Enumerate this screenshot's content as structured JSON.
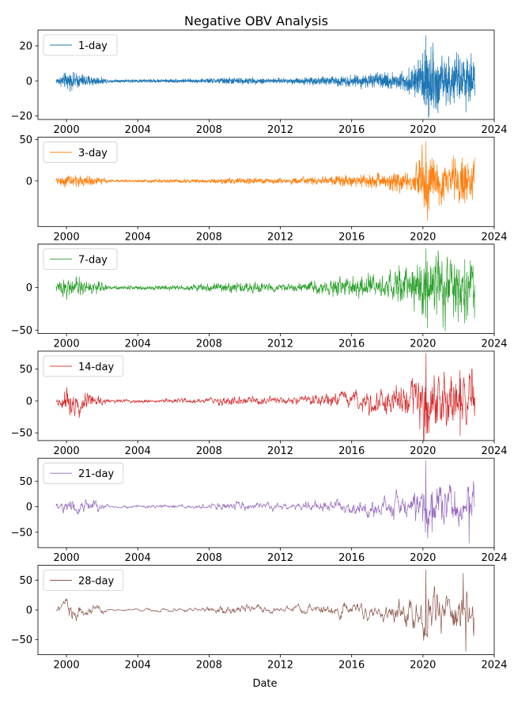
{
  "chart_data": {
    "type": "line",
    "title": "Negative OBV Analysis",
    "xlabel": "Date",
    "x_range": [
      "1999-06",
      "2022-12"
    ],
    "xlim_years": [
      1998.4,
      2024.0
    ],
    "x_ticks": [
      "2000",
      "2004",
      "2008",
      "2012",
      "2016",
      "2020",
      "2024"
    ],
    "grid": false,
    "legend_placement": "upper-left",
    "subplots": [
      {
        "name": "1-day",
        "color": "#1f77b4",
        "ylim": [
          -22,
          29
        ],
        "y_ticks": [
          -20,
          0,
          20
        ],
        "sample_step_days": 3,
        "envelope": [
          {
            "x": "1999-06",
            "amp": 1.0
          },
          {
            "x": "2000-01",
            "amp": 3.2
          },
          {
            "x": "2001-06",
            "amp": 2.0
          },
          {
            "x": "2002-06",
            "amp": 0.6
          },
          {
            "x": "2007-06",
            "amp": 0.8
          },
          {
            "x": "2009-01",
            "amp": 1.3
          },
          {
            "x": "2012-01",
            "amp": 1.0
          },
          {
            "x": "2015-01",
            "amp": 1.8
          },
          {
            "x": "2018-01",
            "amp": 3.0
          },
          {
            "x": "2019-06",
            "amp": 4.5
          },
          {
            "x": "2020-03",
            "amp": 13.0
          },
          {
            "x": "2021-06",
            "amp": 8.5
          },
          {
            "x": "2022-12",
            "amp": 8.5
          }
        ],
        "spikes": [
          {
            "x": "2020-03",
            "y": 26
          },
          {
            "x": "2020-05",
            "y": -20
          },
          {
            "x": "2022-06",
            "y": -18
          }
        ]
      },
      {
        "name": "3-day",
        "color": "#ff7f0e",
        "ylim": [
          -55,
          53
        ],
        "y_ticks": [
          0,
          50
        ],
        "sample_step_days": 4,
        "envelope": [
          {
            "x": "1999-06",
            "amp": 2.0
          },
          {
            "x": "2000-01",
            "amp": 5.5
          },
          {
            "x": "2001-06",
            "amp": 4.0
          },
          {
            "x": "2002-06",
            "amp": 1.0
          },
          {
            "x": "2007-06",
            "amp": 1.5
          },
          {
            "x": "2009-01",
            "amp": 2.5
          },
          {
            "x": "2012-01",
            "amp": 2.0
          },
          {
            "x": "2015-01",
            "amp": 4.0
          },
          {
            "x": "2018-01",
            "amp": 7.0
          },
          {
            "x": "2019-06",
            "amp": 10.0
          },
          {
            "x": "2020-03",
            "amp": 25.0
          },
          {
            "x": "2021-06",
            "amp": 17.0
          },
          {
            "x": "2022-12",
            "amp": 17.0
          }
        ],
        "spikes": [
          {
            "x": "2020-03",
            "y": 48
          },
          {
            "x": "2020-04",
            "y": -48
          },
          {
            "x": "2022-03",
            "y": 22
          }
        ]
      },
      {
        "name": "7-day",
        "color": "#2ca02c",
        "ylim": [
          -54,
          51
        ],
        "y_ticks": [
          -50,
          0
        ],
        "sample_step_days": 5,
        "envelope": [
          {
            "x": "1999-06",
            "amp": 3.0
          },
          {
            "x": "2000-01",
            "amp": 8.0
          },
          {
            "x": "2001-06",
            "amp": 6.0
          },
          {
            "x": "2002-06",
            "amp": 1.5
          },
          {
            "x": "2007-06",
            "amp": 2.5
          },
          {
            "x": "2009-01",
            "amp": 4.5
          },
          {
            "x": "2012-01",
            "amp": 3.0
          },
          {
            "x": "2015-01",
            "amp": 6.0
          },
          {
            "x": "2018-01",
            "amp": 11.0
          },
          {
            "x": "2019-06",
            "amp": 15.0
          },
          {
            "x": "2020-03",
            "amp": 30.0
          },
          {
            "x": "2021-06",
            "amp": 25.0
          },
          {
            "x": "2022-12",
            "amp": 25.0
          }
        ],
        "spikes": [
          {
            "x": "2020-03",
            "y": 46
          },
          {
            "x": "2020-04",
            "y": -48
          },
          {
            "x": "2022-05",
            "y": -42
          }
        ]
      },
      {
        "name": "14-day",
        "color": "#d62728",
        "ylim": [
          -62,
          78
        ],
        "y_ticks": [
          -50,
          0,
          50
        ],
        "sample_step_days": 7,
        "envelope": [
          {
            "x": "1999-06",
            "amp": 4.0
          },
          {
            "x": "2000-01",
            "amp": 15.0
          },
          {
            "x": "2001-06",
            "amp": 10.0
          },
          {
            "x": "2002-06",
            "amp": 2.0
          },
          {
            "x": "2007-06",
            "amp": 3.0
          },
          {
            "x": "2009-01",
            "amp": 6.0
          },
          {
            "x": "2012-01",
            "amp": 4.0
          },
          {
            "x": "2015-01",
            "amp": 9.0
          },
          {
            "x": "2018-01",
            "amp": 15.0
          },
          {
            "x": "2019-06",
            "amp": 22.0
          },
          {
            "x": "2020-03",
            "amp": 45.0
          },
          {
            "x": "2021-06",
            "amp": 35.0
          },
          {
            "x": "2022-12",
            "amp": 35.0
          }
        ],
        "spikes": [
          {
            "x": "2020-03",
            "y": 75
          },
          {
            "x": "2020-05",
            "y": -50
          },
          {
            "x": "2022-02",
            "y": -55
          },
          {
            "x": "2022-10",
            "y": 50
          }
        ]
      },
      {
        "name": "21-day",
        "color": "#9467bd",
        "ylim": [
          -80,
          95
        ],
        "y_ticks": [
          -50,
          0,
          50
        ],
        "sample_step_days": 8,
        "envelope": [
          {
            "x": "1999-06",
            "amp": 5.0
          },
          {
            "x": "2000-01",
            "amp": 16.0
          },
          {
            "x": "2001-06",
            "amp": 12.0
          },
          {
            "x": "2002-06",
            "amp": 2.0
          },
          {
            "x": "2007-06",
            "amp": 3.5
          },
          {
            "x": "2009-01",
            "amp": 7.0
          },
          {
            "x": "2012-01",
            "amp": 5.0
          },
          {
            "x": "2015-01",
            "amp": 11.0
          },
          {
            "x": "2018-01",
            "amp": 18.0
          },
          {
            "x": "2019-06",
            "amp": 25.0
          },
          {
            "x": "2020-03",
            "amp": 50.0
          },
          {
            "x": "2021-06",
            "amp": 40.0
          },
          {
            "x": "2022-12",
            "amp": 40.0
          }
        ],
        "spikes": [
          {
            "x": "2020-03",
            "y": 90
          },
          {
            "x": "2020-07",
            "y": -50
          },
          {
            "x": "2022-08",
            "y": -72
          },
          {
            "x": "2022-11",
            "y": 50
          }
        ]
      },
      {
        "name": "28-day",
        "color": "#8c564b",
        "ylim": [
          -75,
          75
        ],
        "y_ticks": [
          -50,
          0,
          50
        ],
        "sample_step_days": 9,
        "envelope": [
          {
            "x": "1999-06",
            "amp": 5.0
          },
          {
            "x": "2000-01",
            "amp": 18.0
          },
          {
            "x": "2001-06",
            "amp": 12.0
          },
          {
            "x": "2002-06",
            "amp": 2.0
          },
          {
            "x": "2007-06",
            "amp": 4.0
          },
          {
            "x": "2009-01",
            "amp": 10.0
          },
          {
            "x": "2012-01",
            "amp": 5.0
          },
          {
            "x": "2015-01",
            "amp": 12.0
          },
          {
            "x": "2018-01",
            "amp": 20.0
          },
          {
            "x": "2019-06",
            "amp": 30.0
          },
          {
            "x": "2020-03",
            "amp": 55.0
          },
          {
            "x": "2021-06",
            "amp": 45.0
          },
          {
            "x": "2022-12",
            "amp": 45.0
          }
        ],
        "spikes": [
          {
            "x": "2020-03",
            "y": 68
          },
          {
            "x": "2020-04",
            "y": -45
          },
          {
            "x": "2022-06",
            "y": -70
          },
          {
            "x": "2022-04",
            "y": 62
          }
        ]
      }
    ]
  }
}
